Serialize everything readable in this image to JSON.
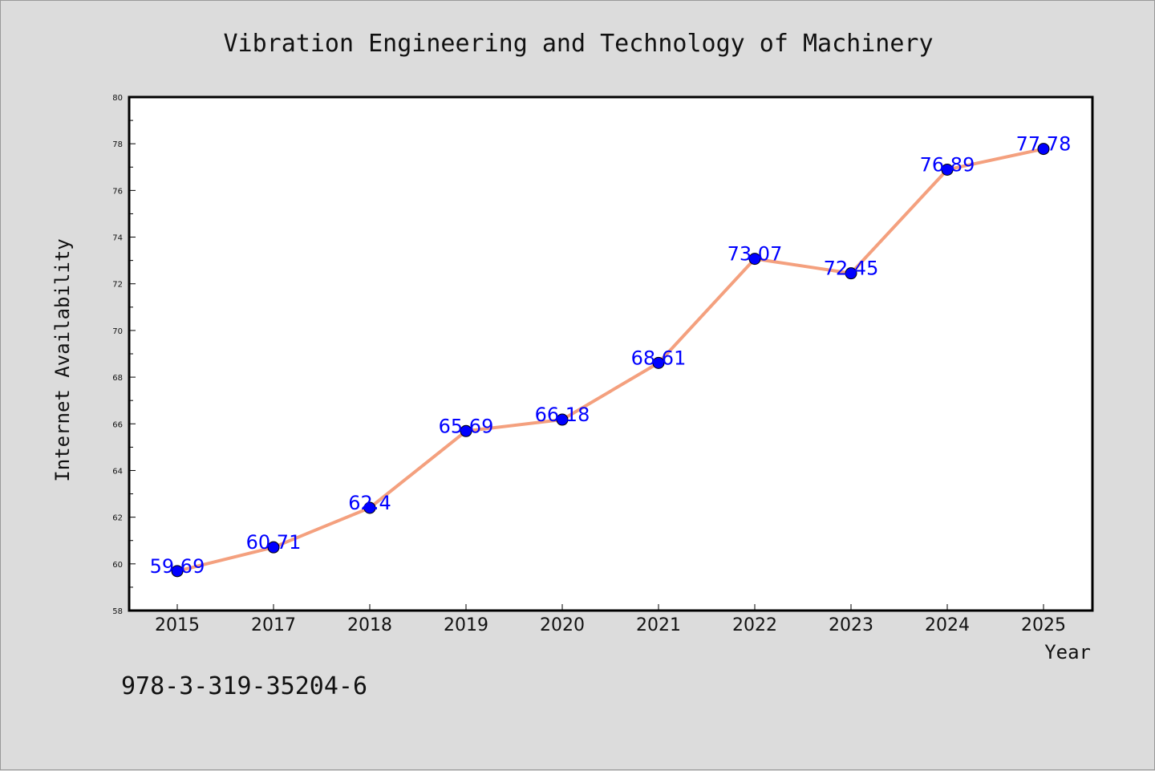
{
  "chart_data": {
    "type": "line",
    "title": "Vibration Engineering and Technology of Machinery",
    "xlabel": "Year",
    "ylabel": "Internet Availability",
    "categories": [
      "2015",
      "2017",
      "2018",
      "2019",
      "2020",
      "2021",
      "2022",
      "2023",
      "2024",
      "2025"
    ],
    "series": [
      {
        "values": [
          59.69,
          60.71,
          62.4,
          65.69,
          66.18,
          68.61,
          73.07,
          72.45,
          76.89,
          77.78
        ],
        "data_labels": [
          "59.69",
          "60.71",
          "62.4",
          "65.69",
          "66.18",
          "68.61",
          "73.07",
          "72.45",
          "76.89",
          "77.78"
        ]
      }
    ],
    "ylim": [
      58,
      80
    ],
    "yticks": [
      "58",
      "60",
      "62",
      "64",
      "66",
      "68",
      "70",
      "72",
      "74",
      "76",
      "78",
      "80"
    ],
    "grid": false,
    "line_color": "#f4a07e",
    "marker_color": "#0000ff",
    "label_color": "#0000ff"
  },
  "footer_text": "978-3-319-35204-6"
}
